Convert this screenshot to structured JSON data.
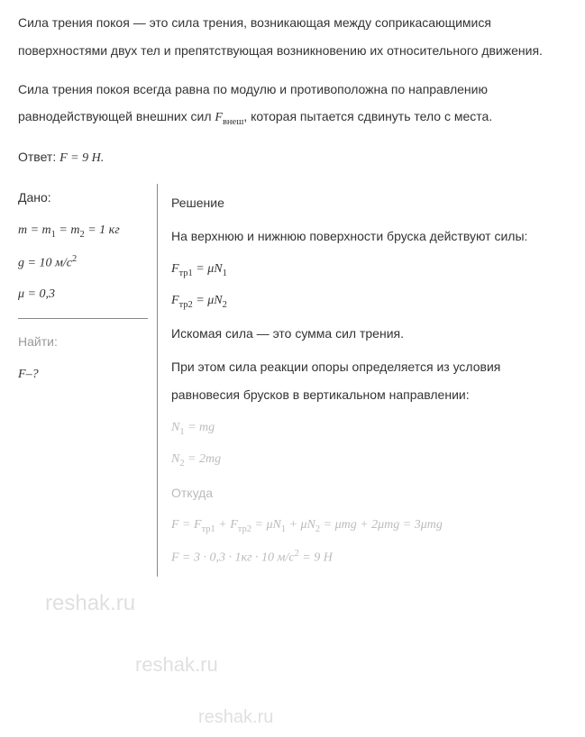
{
  "intro": {
    "p1": "Сила трения покоя — это сила трения, возникающая между соприкасающимися поверхностями двух тел и препятствующая возникновению их относительного движения.",
    "p2_pre": "Сила трения покоя всегда равна по модулю и противоположна по направлению равнодействующей внешних сил ",
    "p2_var": "F",
    "p2_sub": "внеш",
    "p2_post": ", которая пытается сдвинуть тело с места."
  },
  "answer": {
    "label": "Ответ: ",
    "var": "F",
    "eq": " = 9 Н."
  },
  "given": {
    "label": "Дано:",
    "line1": "m = m",
    "line1_sub1": "1",
    "line1_mid": " = m",
    "line1_sub2": "2",
    "line1_end": " = 1 кг",
    "line2": "g = 10 м/с",
    "line2_sup": "2",
    "line3": "μ = 0,3"
  },
  "find": {
    "label": "Найти:",
    "var": "F",
    "post": "–?"
  },
  "solution": {
    "label": "Решение",
    "text1": "На верхнюю и нижнюю поверхности бруска действуют силы:",
    "f1": "F",
    "f1_sub": "тр1",
    "f1_eq": " = μN",
    "f1_sub2": "1",
    "f2": "F",
    "f2_sub": "тр2",
    "f2_eq": " = μN",
    "f2_sub2": "2",
    "text2": "Искомая сила — это сумма сил трения.",
    "text3": "При этом сила реакции опоры определяется из условия равновесия брусков в вертикальном направлении:",
    "n1": "N",
    "n1_sub": "1",
    "n1_eq": " = mg",
    "n2": "N",
    "n2_sub": "2",
    "n2_eq": " = 2mg",
    "text4": "Откуда",
    "final_pre": "F = F",
    "final_s1": "тр1",
    "final_plus": " + F",
    "final_s2": "тр2",
    "final_mid": " = μN",
    "final_s3": "1",
    "final_mid2": " + μN",
    "final_s4": "2",
    "final_end": " = μmg + 2μmg = 3μmg",
    "calc": "F = 3 · 0,3 · 1кг · 10 м/с",
    "calc_sup": "2",
    "calc_end": " = 9  Н"
  },
  "watermark": "reshak.ru"
}
